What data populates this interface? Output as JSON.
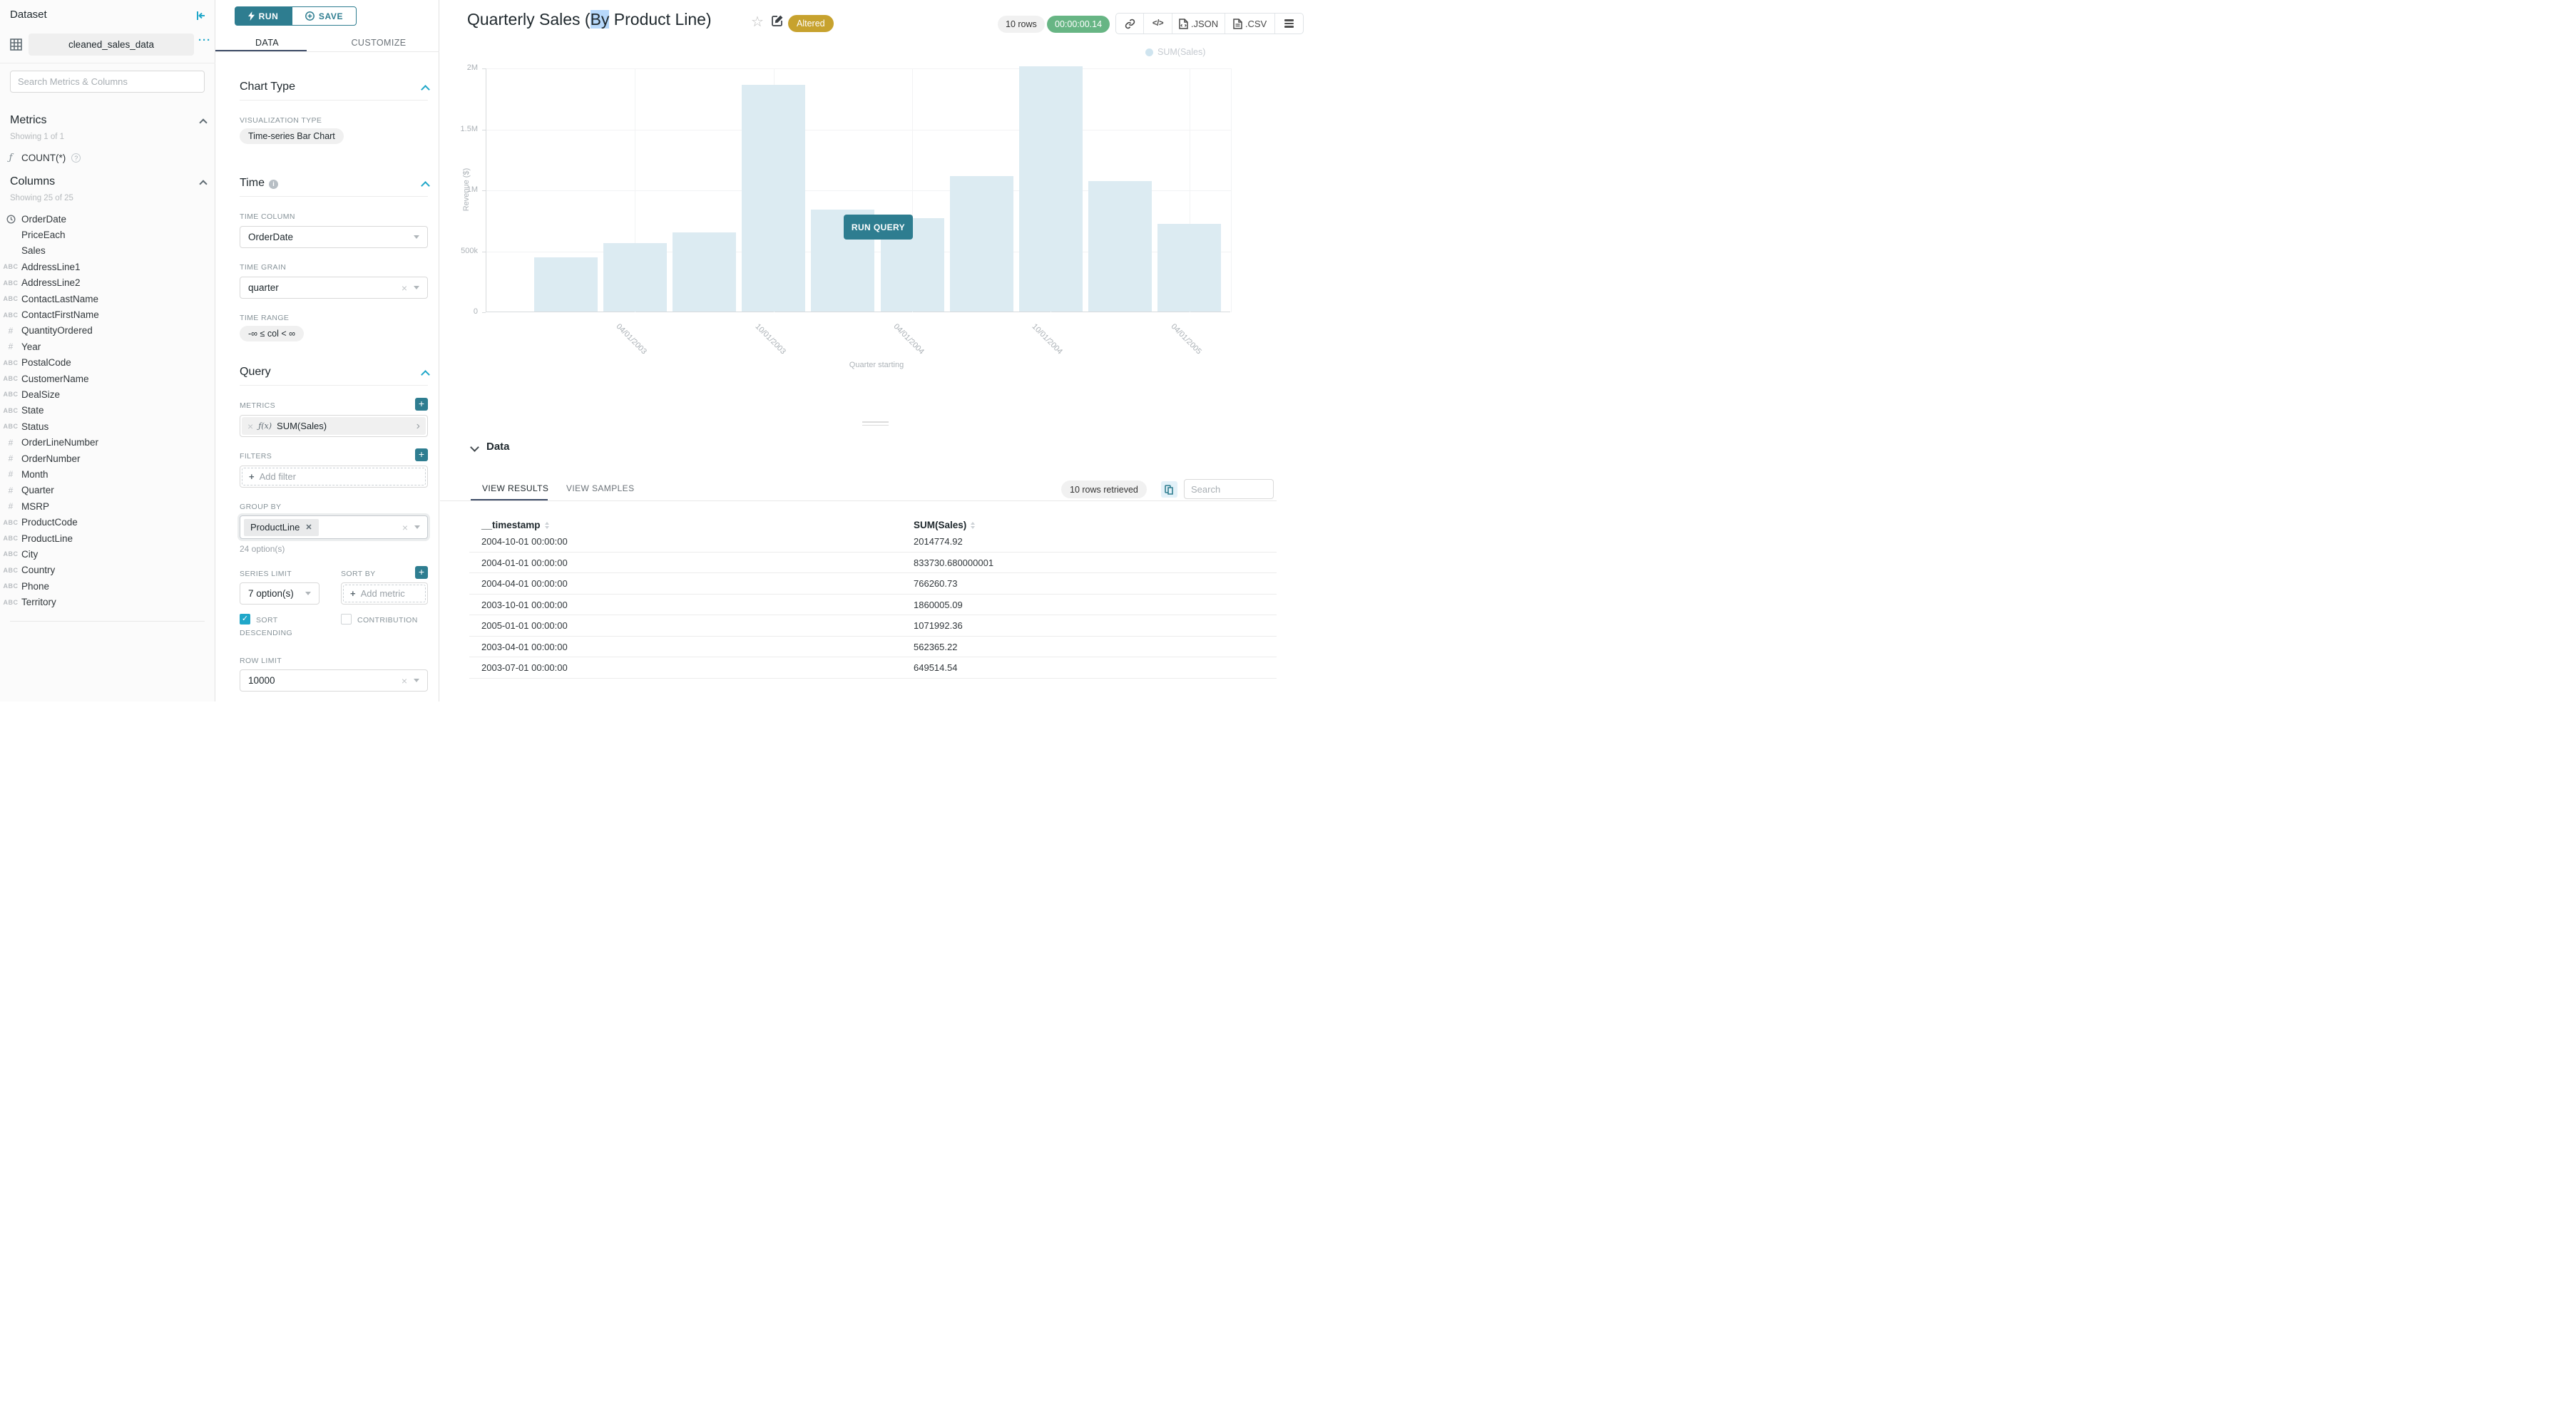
{
  "colors": {
    "accent": "#2e7d90",
    "accent_bright": "#20a7c9",
    "badge_gold": "#c7a22e",
    "timer_green": "#67b584",
    "bar_fill": "#dcebf2",
    "selection_highlight": "#b7d8fb",
    "tab_indicator": "#3f4d68"
  },
  "dataset_panel": {
    "title": "Dataset",
    "dataset_name": "cleaned_sales_data",
    "more_glyph": "···",
    "search_placeholder": "Search Metrics & Columns",
    "metrics": {
      "title": "Metrics",
      "showing": "Showing 1 of 1",
      "items": [
        {
          "icon": "function",
          "glyph": "ƒ",
          "label": "COUNT(*)"
        }
      ]
    },
    "columns": {
      "title": "Columns",
      "showing": "Showing 25 of 25",
      "icon_glyphs": {
        "abc": "ABC",
        "hash": "#",
        "clock": "clock-svg",
        "none": ""
      },
      "items": [
        {
          "icon": "clock",
          "label": "OrderDate"
        },
        {
          "icon": "none",
          "label": "PriceEach"
        },
        {
          "icon": "none",
          "label": "Sales"
        },
        {
          "icon": "abc",
          "label": "AddressLine1"
        },
        {
          "icon": "abc",
          "label": "AddressLine2"
        },
        {
          "icon": "abc",
          "label": "ContactLastName"
        },
        {
          "icon": "abc",
          "label": "ContactFirstName"
        },
        {
          "icon": "hash",
          "label": "QuantityOrdered"
        },
        {
          "icon": "hash",
          "label": "Year"
        },
        {
          "icon": "abc",
          "label": "PostalCode"
        },
        {
          "icon": "abc",
          "label": "CustomerName"
        },
        {
          "icon": "abc",
          "label": "DealSize"
        },
        {
          "icon": "abc",
          "label": "State"
        },
        {
          "icon": "abc",
          "label": "Status"
        },
        {
          "icon": "hash",
          "label": "OrderLineNumber"
        },
        {
          "icon": "hash",
          "label": "OrderNumber"
        },
        {
          "icon": "hash",
          "label": "Month"
        },
        {
          "icon": "hash",
          "label": "Quarter"
        },
        {
          "icon": "hash",
          "label": "MSRP"
        },
        {
          "icon": "abc",
          "label": "ProductCode"
        },
        {
          "icon": "abc",
          "label": "ProductLine"
        },
        {
          "icon": "abc",
          "label": "City"
        },
        {
          "icon": "abc",
          "label": "Country"
        },
        {
          "icon": "abc",
          "label": "Phone"
        },
        {
          "icon": "abc",
          "label": "Territory"
        }
      ]
    }
  },
  "control_panel": {
    "run": "RUN",
    "save": "SAVE",
    "tabs": {
      "data": "DATA",
      "customize": "CUSTOMIZE"
    },
    "chart_type": {
      "title": "Chart Type",
      "viz_label": "VISUALIZATION TYPE",
      "viz_value": "Time-series Bar Chart"
    },
    "time": {
      "title": "Time",
      "col_label": "TIME COLUMN",
      "col_value": "OrderDate",
      "grain_label": "TIME GRAIN",
      "grain_value": "quarter",
      "range_label": "TIME RANGE",
      "range_value": "-∞ ≤ col < ∞"
    },
    "query": {
      "title": "Query",
      "metrics_label": "METRICS",
      "metric_fn": "ƒ(x)",
      "metric_value": "SUM(Sales)",
      "filters_label": "FILTERS",
      "add_filter": "Add filter",
      "group_by_label": "GROUP BY",
      "group_by_value": "ProductLine",
      "options_hint": "24 option(s)",
      "series_limit_label": "SERIES LIMIT",
      "series_limit_value": "7 option(s)",
      "sort_by_label": "SORT BY",
      "add_metric": "Add metric",
      "sort_descending": "SORT DESCENDING",
      "contribution": "CONTRIBUTION",
      "row_limit_label": "ROW LIMIT",
      "row_limit_value": "10000"
    }
  },
  "header": {
    "title_prefix": "Quarterly Sales (",
    "title_highlight": "By",
    "title_suffix": " Product Line)",
    "badge": "Altered",
    "rows_pill": "10 rows",
    "duration": "00:00:00.14",
    "json_label": ".JSON",
    "csv_label": ".CSV"
  },
  "chart": {
    "run_query": "RUN QUERY",
    "legend": "SUM(Sales)"
  },
  "chart_data": {
    "type": "bar",
    "series_name": "SUM(Sales)",
    "x": [
      "2003-01-01",
      "2003-04-01",
      "2003-07-01",
      "2003-10-01",
      "2004-01-01",
      "2004-04-01",
      "2004-07-01",
      "2004-10-01",
      "2005-01-01",
      "2005-04-01"
    ],
    "values": [
      445000,
      562365.22,
      649514.54,
      1860005.09,
      833730.68,
      766260.73,
      1110000,
      2014774.92,
      1071992.36,
      720000
    ],
    "title": "Quarterly Sales (By Product Line)",
    "xlabel": "Quarter starting",
    "ylabel": "Revenue ($)",
    "ylim": [
      0,
      2000000
    ],
    "yticks": [
      {
        "value": 0,
        "label": "0"
      },
      {
        "value": 500000,
        "label": "500k"
      },
      {
        "value": 1000000,
        "label": "1M"
      },
      {
        "value": 1500000,
        "label": "1.5M"
      },
      {
        "value": 2000000,
        "label": "2M"
      }
    ],
    "xtick_labels": [
      "04/01/2003",
      "10/01/2003",
      "04/01/2004",
      "10/01/2004",
      "04/01/2005"
    ],
    "legend_position": "top-right",
    "grid": true,
    "bar_color": "#dcebf2"
  },
  "data_panel": {
    "title": "Data",
    "tabs": {
      "results": "VIEW RESULTS",
      "samples": "VIEW SAMPLES"
    },
    "rows_retrieved": "10 rows retrieved",
    "search_placeholder": "Search",
    "table": {
      "columns": [
        "__timestamp",
        "SUM(Sales)"
      ],
      "rows": [
        [
          "2004-10-01 00:00:00",
          "2014774.92"
        ],
        [
          "2004-01-01 00:00:00",
          "833730.680000001"
        ],
        [
          "2004-04-01 00:00:00",
          "766260.73"
        ],
        [
          "2003-10-01 00:00:00",
          "1860005.09"
        ],
        [
          "2005-01-01 00:00:00",
          "1071992.36"
        ],
        [
          "2003-04-01 00:00:00",
          "562365.22"
        ],
        [
          "2003-07-01 00:00:00",
          "649514.54"
        ]
      ]
    }
  }
}
